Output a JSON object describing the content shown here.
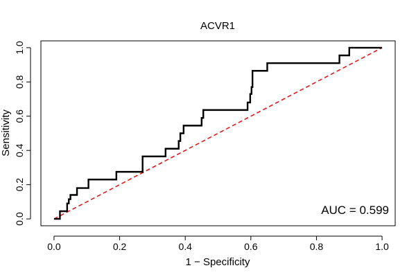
{
  "chart_data": {
    "type": "line",
    "title": "ACVR1",
    "xlabel": "1 − Specificity",
    "ylabel": "Sensitivity",
    "xlim": [
      -0.04,
      1.04
    ],
    "ylim": [
      -0.04,
      1.04
    ],
    "x_ticks": [
      0.0,
      0.2,
      0.4,
      0.6,
      0.8,
      1.0
    ],
    "x_tick_labels": [
      "0.0",
      "0.2",
      "0.4",
      "0.6",
      "0.8",
      "1.0"
    ],
    "y_ticks": [
      0.0,
      0.2,
      0.4,
      0.6,
      0.8,
      1.0
    ],
    "y_tick_labels": [
      "0.0",
      "0.2",
      "0.4",
      "0.6",
      "0.8",
      "1.0"
    ],
    "grid": false,
    "annotation": "AUC = 0.599",
    "series": [
      {
        "color": "#000000",
        "style": "solid",
        "x": [
          0.0,
          0.018,
          0.018,
          0.04,
          0.04,
          0.045,
          0.045,
          0.05,
          0.05,
          0.07,
          0.07,
          0.105,
          0.105,
          0.19,
          0.19,
          0.27,
          0.27,
          0.34,
          0.34,
          0.38,
          0.38,
          0.385,
          0.385,
          0.395,
          0.395,
          0.45,
          0.45,
          0.455,
          0.455,
          0.59,
          0.59,
          0.598,
          0.598,
          0.602,
          0.602,
          0.605,
          0.605,
          0.65,
          0.65,
          0.87,
          0.87,
          0.9,
          0.9,
          1.0
        ],
        "y": [
          0.0,
          0.0,
          0.045,
          0.045,
          0.09,
          0.09,
          0.115,
          0.115,
          0.14,
          0.14,
          0.18,
          0.18,
          0.23,
          0.23,
          0.275,
          0.275,
          0.365,
          0.365,
          0.41,
          0.41,
          0.455,
          0.455,
          0.5,
          0.5,
          0.545,
          0.545,
          0.59,
          0.59,
          0.636,
          0.636,
          0.68,
          0.68,
          0.73,
          0.73,
          0.77,
          0.77,
          0.865,
          0.865,
          0.91,
          0.91,
          0.955,
          0.955,
          1.0,
          1.0
        ]
      },
      {
        "color": "#e31a1c",
        "style": "dashed",
        "x": [
          0.0,
          1.0
        ],
        "y": [
          0.0,
          1.0
        ]
      }
    ]
  }
}
